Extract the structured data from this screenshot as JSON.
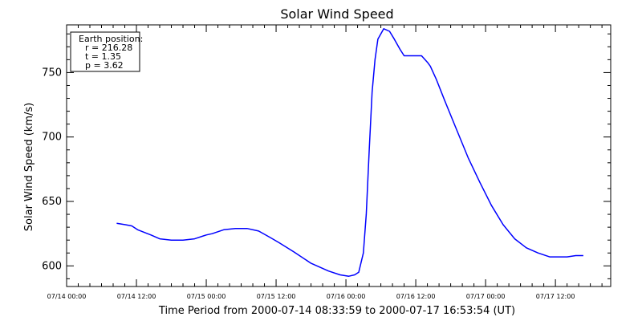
{
  "chart_data": {
    "type": "line",
    "title": "Solar Wind Speed",
    "xlabel": "Time Period from 2000-07-14 08:33:59 to 2000-07-17 16:53:54 (UT)",
    "ylabel": "Solar Wind Speed (km/s)",
    "x_unit": "hours from 07/14 00:00",
    "xlim": [
      0,
      93.5
    ],
    "ylim": [
      584,
      787
    ],
    "x_ticks": [
      {
        "x": 0,
        "label": "07/14 00:00"
      },
      {
        "x": 12,
        "label": "07/14 12:00"
      },
      {
        "x": 24,
        "label": "07/15 00:00"
      },
      {
        "x": 36,
        "label": "07/15 12:00"
      },
      {
        "x": 48,
        "label": "07/16 00:00"
      },
      {
        "x": 60,
        "label": "07/16 12:00"
      },
      {
        "x": 72,
        "label": "07/17 00:00"
      },
      {
        "x": 84,
        "label": "07/17 12:00"
      }
    ],
    "y_ticks": [
      600,
      650,
      700,
      750
    ],
    "line_color": "#0000ff",
    "series": [
      {
        "x": [
          8.6,
          10.0,
          11.2,
          12.2,
          14.5,
          16.0,
          18.0,
          20.0,
          22.0,
          24.0,
          25.0,
          27.0,
          29.0,
          31.0,
          33.0,
          35.0,
          36.5,
          39.0,
          42.0,
          45.0,
          47.0,
          48.5,
          49.5,
          50.2,
          51.0,
          51.5,
          52.0,
          52.5,
          53.0,
          53.5,
          54.5,
          55.5,
          56.3,
          57.3,
          58.0,
          59.5,
          61.0,
          62.0,
          62.5,
          63.5,
          65.0,
          67.0,
          69.0,
          71.0,
          73.0,
          75.0,
          77.0,
          79.0,
          81.0,
          83.0,
          84.5,
          86.0,
          87.5,
          88.8
        ],
        "y": [
          633,
          632,
          631,
          628,
          624,
          621,
          620,
          620,
          621,
          624,
          625,
          628,
          629,
          629,
          627,
          622,
          618,
          611,
          602,
          596,
          593,
          592,
          593,
          595,
          610,
          640,
          690,
          735,
          760,
          776,
          784,
          782,
          776,
          768,
          763,
          763,
          763,
          758,
          755,
          745,
          728,
          706,
          684,
          665,
          647,
          632,
          621,
          614,
          610,
          607,
          607,
          607,
          608,
          608
        ]
      }
    ],
    "annotation": {
      "heading": "Earth position:",
      "lines": [
        "r = 216.28",
        "t = 1.35",
        "p = 3.62"
      ]
    }
  }
}
